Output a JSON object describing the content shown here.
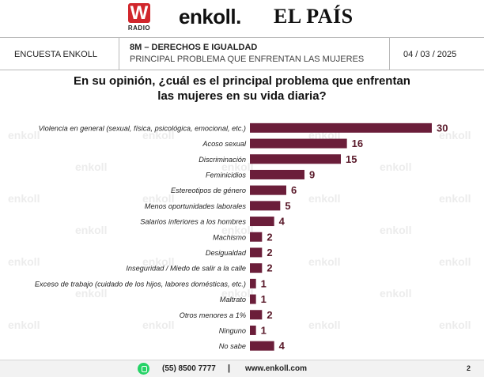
{
  "logos": {
    "w_letter": "W",
    "w_sub": "RADIO",
    "enkoll": "enkoll.",
    "el_pais": "EL PAÍS"
  },
  "header": {
    "left": "ENCUESTA ENKOLL",
    "title_line1": "8M – DERECHOS E IGUALDAD",
    "title_line2": "PRINCIPAL PROBLEMA QUE ENFRENTAN LAS MUJERES",
    "date": "04 / 03 / 2025"
  },
  "question": {
    "line1": "En su opinión, ¿cuál es el principal problema que enfrentan",
    "line2": "las mujeres en su vida diaria?"
  },
  "chart_data": {
    "type": "bar",
    "orientation": "horizontal",
    "bar_color": "#6b1e3a",
    "watermark": "enkoll",
    "categories": [
      "Violencia en general (sexual, física, psicológica, emocional, etc.)",
      "Acoso sexual",
      "Discriminación",
      "Feminicidios",
      "Estereotipos de género",
      "Menos oportunidades laborales",
      "Salarios inferiores a los hombres",
      "Machismo",
      "Desigualdad",
      "Inseguridad / Miedo de salir a la calle",
      "Exceso de trabajo (cuidado de los hijos, labores domésticas, etc.)",
      "Maltrato",
      "Otros menores a 1%",
      "Ninguno",
      "No sabe"
    ],
    "values": [
      30,
      16,
      15,
      9,
      6,
      5,
      4,
      2,
      2,
      2,
      1,
      1,
      2,
      1,
      4
    ],
    "xlim": [
      0,
      30
    ]
  },
  "footer": {
    "phone": "(55) 8500 7777",
    "separator": "|",
    "website": "www.enkoll.com",
    "page": "2"
  },
  "colors": {
    "bar": "#6b1e3a",
    "value_text": "#5a1a2a",
    "whatsapp": "#25d366"
  }
}
